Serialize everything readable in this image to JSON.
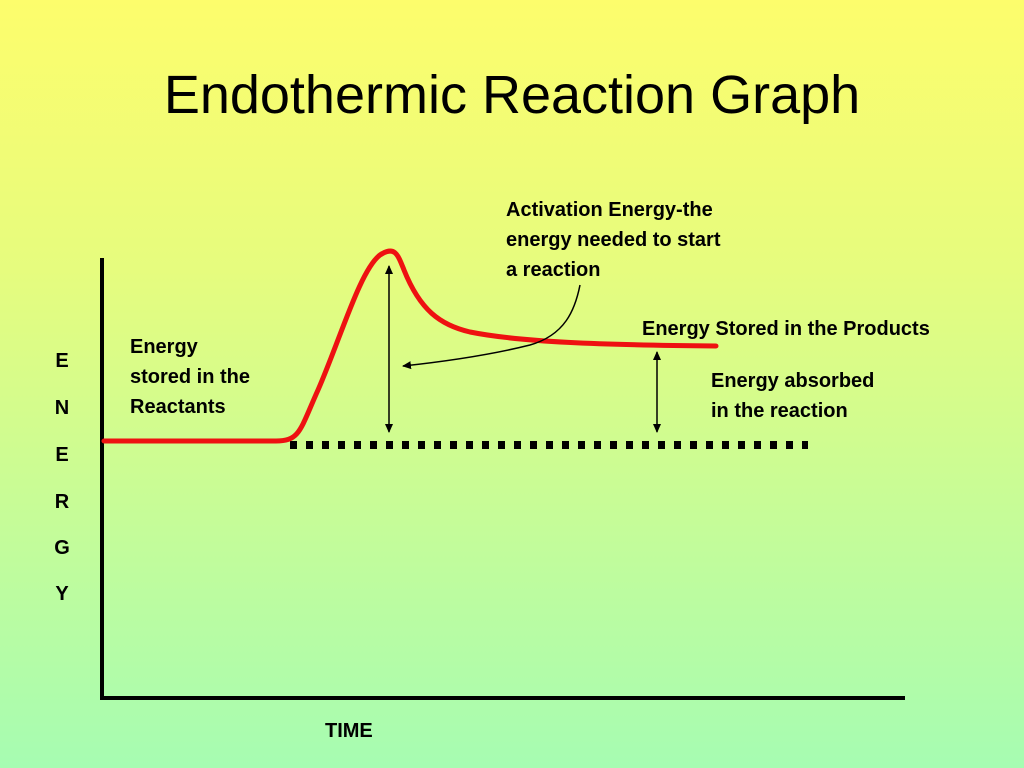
{
  "slide": {
    "title": "Endothermic Reaction Graph"
  },
  "axes": {
    "y_label_letters": [
      "E",
      "N",
      "E",
      "R",
      "G",
      "Y"
    ],
    "x_label": "TIME"
  },
  "annotations": {
    "reactants_line1": "Energy",
    "reactants_line2": "stored in the",
    "reactants_line3": "Reactants",
    "activation_line1": "Activation Energy-the",
    "activation_line2": "energy needed to start",
    "activation_line3": "a reaction",
    "products": "Energy Stored in the Products",
    "absorbed_line1": "Energy absorbed",
    "absorbed_line2": "in the reaction"
  },
  "colors": {
    "curve": "#ee1111",
    "axis": "#000000",
    "background_top": "#fdfd6c",
    "background_bottom": "#a6fcb2"
  }
}
